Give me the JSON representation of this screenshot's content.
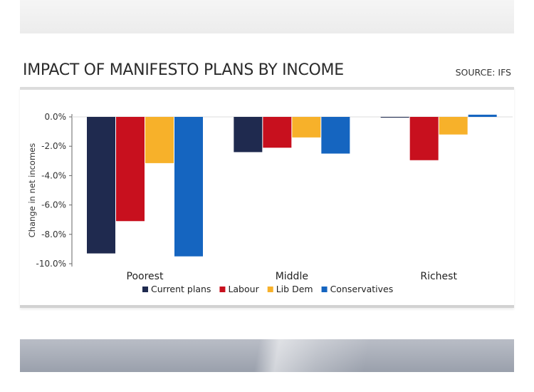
{
  "header": {
    "title": "IMPACT OF MANIFESTO PLANS BY INCOME",
    "source": "SOURCE: IFS"
  },
  "colors": {
    "current_plans": "#1f2a4f",
    "labour": "#c8101e",
    "lib_dem": "#f7b12a",
    "conservatives": "#1565c0",
    "axis": "#666666",
    "grid": "#dddddd"
  },
  "chart_data": {
    "type": "bar",
    "title": "IMPACT OF MANIFESTO PLANS BY INCOME",
    "xlabel": "",
    "ylabel": "Change in net incomes",
    "ylim": [
      -10.0,
      0.0
    ],
    "yticks": [
      0.0,
      -2.0,
      -4.0,
      -6.0,
      -8.0,
      -10.0
    ],
    "ytick_labels": [
      "0.0%",
      "-2.0%",
      "-4.0%",
      "-6.0%",
      "-8.0%",
      "-10.0%"
    ],
    "categories": [
      "Poorest",
      "Middle",
      "Richest"
    ],
    "series": [
      {
        "name": "Current plans",
        "color": "#1f2a4f",
        "values": [
          -9.3,
          -2.4,
          -0.05
        ]
      },
      {
        "name": "Labour",
        "color": "#c8101e",
        "values": [
          -7.1,
          -2.1,
          -2.95
        ]
      },
      {
        "name": "Lib Dem",
        "color": "#f7b12a",
        "values": [
          -3.15,
          -1.4,
          -1.2
        ]
      },
      {
        "name": "Conservatives",
        "color": "#1565c0",
        "values": [
          -9.5,
          -2.5,
          0.15
        ]
      }
    ],
    "legend": "bottom-center",
    "grid": false
  }
}
